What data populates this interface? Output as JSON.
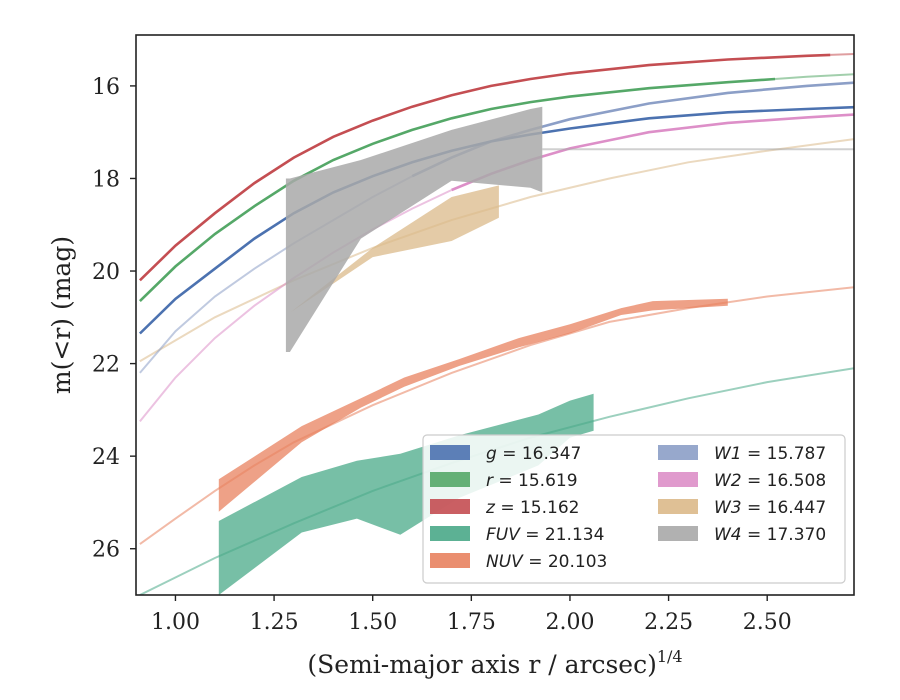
{
  "chart_data": {
    "type": "line",
    "title": "",
    "xlabel": "(Semi-major axis r / arcsec)",
    "xlabel_exponent": "1/4",
    "ylabel": "m(<r) (mag)",
    "xlim": [
      0.9,
      2.72
    ],
    "ylim": [
      27.0,
      14.9
    ],
    "y_inverted": true,
    "grid": false,
    "x_ticks": [
      1.0,
      1.25,
      1.5,
      1.75,
      2.0,
      2.25,
      2.5
    ],
    "x_tick_labels": [
      "1.00",
      "1.25",
      "1.50",
      "1.75",
      "2.00",
      "2.25",
      "2.50"
    ],
    "y_ticks": [
      16,
      18,
      20,
      22,
      24,
      26
    ],
    "y_tick_labels": [
      "16",
      "18",
      "20",
      "22",
      "24",
      "26"
    ],
    "legend_placement": "lower-right",
    "series": [
      {
        "name": "g",
        "label_var": "g",
        "label_value": "16.347",
        "color": "#4c72b0",
        "data_x": [
          0.91,
          1.0,
          1.1,
          1.2,
          1.3,
          1.4,
          1.5,
          1.6,
          1.7,
          1.8,
          1.9,
          2.0,
          2.2,
          2.4,
          2.6,
          2.72
        ],
        "data_y": [
          21.35,
          20.6,
          19.95,
          19.3,
          18.75,
          18.3,
          17.95,
          17.65,
          17.4,
          17.2,
          17.05,
          16.92,
          16.7,
          16.57,
          16.5,
          16.46
        ],
        "model_x": [
          2.72
        ],
        "model_y": [
          16.46
        ]
      },
      {
        "name": "r",
        "label_var": "r",
        "label_value": "15.619",
        "color": "#55a868",
        "data_x": [
          0.91,
          1.0,
          1.1,
          1.2,
          1.3,
          1.4,
          1.5,
          1.6,
          1.7,
          1.8,
          1.9,
          2.0,
          2.2,
          2.4,
          2.52
        ],
        "data_y": [
          20.65,
          19.9,
          19.2,
          18.6,
          18.05,
          17.6,
          17.25,
          16.95,
          16.7,
          16.5,
          16.35,
          16.23,
          16.05,
          15.92,
          15.85
        ],
        "model_x": [
          2.52,
          2.6,
          2.72
        ],
        "model_y": [
          15.85,
          15.8,
          15.75
        ]
      },
      {
        "name": "z",
        "label_var": "z",
        "label_value": "15.162",
        "color": "#c44e52",
        "data_x": [
          0.91,
          1.0,
          1.1,
          1.2,
          1.3,
          1.4,
          1.5,
          1.6,
          1.7,
          1.8,
          1.9,
          2.0,
          2.2,
          2.4,
          2.6,
          2.66
        ],
        "data_y": [
          20.2,
          19.45,
          18.75,
          18.1,
          17.55,
          17.1,
          16.75,
          16.45,
          16.2,
          16.0,
          15.85,
          15.73,
          15.55,
          15.43,
          15.35,
          15.33
        ],
        "model_x": [
          2.66,
          2.72
        ],
        "model_y": [
          15.33,
          15.31
        ]
      },
      {
        "name": "FUV",
        "label_var": "FUV",
        "label_value": "21.134",
        "color": "#4aa988",
        "band_x": [
          1.11,
          1.32,
          1.46,
          1.57,
          1.72,
          1.92,
          2.0,
          2.06
        ],
        "band_upper": [
          25.4,
          24.45,
          24.1,
          23.95,
          23.55,
          23.1,
          22.8,
          22.65
        ],
        "band_lower": [
          27.0,
          25.65,
          25.35,
          25.7,
          24.9,
          24.2,
          23.6,
          23.45
        ],
        "model_x": [
          0.91,
          1.1,
          1.3,
          1.5,
          1.7,
          1.9,
          2.1,
          2.3,
          2.5,
          2.72
        ],
        "model_y": [
          27.0,
          26.2,
          25.45,
          24.75,
          24.15,
          23.6,
          23.15,
          22.75,
          22.4,
          22.1
        ]
      },
      {
        "name": "NUV",
        "label_var": "NUV",
        "label_value": "20.103",
        "color": "#e8825f",
        "band_x": [
          1.11,
          1.32,
          1.47,
          1.58,
          1.72,
          1.87,
          2.0,
          2.13,
          2.21,
          2.4
        ],
        "band_upper": [
          24.5,
          23.35,
          22.75,
          22.3,
          21.9,
          21.45,
          21.15,
          20.8,
          20.65,
          20.6
        ],
        "band_lower": [
          25.2,
          23.7,
          22.95,
          22.5,
          22.05,
          21.65,
          21.35,
          20.95,
          20.85,
          20.75
        ],
        "model_x": [
          0.91,
          1.0,
          1.1,
          1.2,
          1.3,
          1.5,
          1.7,
          1.9,
          2.1,
          2.3,
          2.5,
          2.72
        ],
        "model_y": [
          25.9,
          25.35,
          24.75,
          24.2,
          23.7,
          22.9,
          22.2,
          21.6,
          21.1,
          20.8,
          20.55,
          20.35
        ]
      },
      {
        "name": "W1",
        "label_var": "W1",
        "label_value": "15.787",
        "color": "#8c9fc7",
        "data_x": [
          1.6,
          1.7,
          1.8,
          1.9,
          2.0,
          2.2,
          2.4,
          2.6,
          2.72
        ],
        "data_y": [
          17.95,
          17.55,
          17.2,
          16.95,
          16.72,
          16.38,
          16.15,
          16.0,
          15.93
        ],
        "model_x": [
          0.91,
          1.0,
          1.1,
          1.2,
          1.3,
          1.4,
          1.5,
          1.6
        ],
        "model_y": [
          22.2,
          21.3,
          20.55,
          19.95,
          19.4,
          18.9,
          18.4,
          17.95
        ]
      },
      {
        "name": "W2",
        "label_var": "W2",
        "label_value": "16.508",
        "color": "#dd8fc8",
        "data_x": [
          1.7,
          1.8,
          1.9,
          2.0,
          2.2,
          2.4,
          2.6,
          2.72
        ],
        "data_y": [
          18.25,
          17.9,
          17.6,
          17.35,
          17.0,
          16.8,
          16.68,
          16.62
        ],
        "model_x": [
          0.91,
          1.0,
          1.1,
          1.2,
          1.3,
          1.4,
          1.5,
          1.6,
          1.7
        ],
        "model_y": [
          23.25,
          22.3,
          21.45,
          20.75,
          20.15,
          19.6,
          19.1,
          18.65,
          18.25
        ]
      },
      {
        "name": "W3",
        "label_var": "W3",
        "label_value": "16.447",
        "color": "#dbb98a",
        "band_x": [
          1.29,
          1.5,
          1.7,
          1.82
        ],
        "band_upper": [
          20.9,
          19.5,
          18.4,
          18.15
        ],
        "band_lower": [
          20.9,
          19.7,
          19.35,
          18.85
        ],
        "model_x": [
          0.91,
          1.1,
          1.3,
          1.5,
          1.7,
          1.9,
          2.1,
          2.3,
          2.5,
          2.72
        ],
        "model_y": [
          21.95,
          21.0,
          20.2,
          19.5,
          18.9,
          18.4,
          18.0,
          17.65,
          17.4,
          17.15
        ]
      },
      {
        "name": "W4",
        "label_var": "W4",
        "label_value": "17.370",
        "color": "#a9a9a9",
        "band_x": [
          1.28,
          1.29,
          1.47,
          1.7,
          1.9,
          1.93
        ],
        "band_upper": [
          18.0,
          18.0,
          17.6,
          16.95,
          16.5,
          16.45
        ],
        "band_lower": [
          21.75,
          21.75,
          19.3,
          18.05,
          18.2,
          18.3
        ],
        "model_x": [
          1.93,
          2.72
        ],
        "model_y": [
          17.37,
          17.37
        ]
      }
    ]
  }
}
